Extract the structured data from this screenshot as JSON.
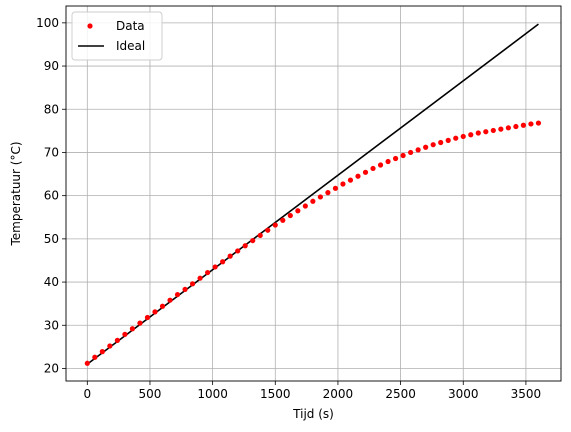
{
  "chart_data": {
    "type": "scatter",
    "title": "",
    "xlabel": "Tijd (s)",
    "ylabel": "Temperatuur (°C)",
    "xlim": [
      -170,
      3780
    ],
    "ylim": [
      17.1,
      103.9
    ],
    "xticks": [
      0,
      500,
      1000,
      1500,
      2000,
      2500,
      3000,
      3500
    ],
    "yticks": [
      20,
      30,
      40,
      50,
      60,
      70,
      80,
      90,
      100
    ],
    "grid": true,
    "legend": "top-left",
    "series": [
      {
        "name": "Data",
        "kind": "markers",
        "color": "#ff0000",
        "x": [
          0,
          60,
          120,
          180,
          240,
          300,
          360,
          420,
          480,
          540,
          600,
          660,
          720,
          780,
          840,
          900,
          960,
          1020,
          1080,
          1140,
          1200,
          1260,
          1320,
          1380,
          1440,
          1500,
          1560,
          1620,
          1680,
          1740,
          1800,
          1860,
          1920,
          1980,
          2040,
          2100,
          2160,
          2220,
          2280,
          2340,
          2400,
          2460,
          2520,
          2580,
          2640,
          2700,
          2760,
          2820,
          2880,
          2940,
          3000,
          3060,
          3120,
          3180,
          3240,
          3300,
          3360,
          3420,
          3480,
          3540,
          3600
        ],
        "y": [
          21.2,
          22.6,
          23.9,
          25.2,
          26.5,
          27.9,
          29.2,
          30.5,
          31.8,
          33.1,
          34.4,
          35.8,
          37.1,
          38.3,
          39.6,
          40.9,
          42.2,
          43.5,
          44.7,
          46.0,
          47.2,
          48.4,
          49.6,
          50.8,
          52.0,
          53.2,
          54.3,
          55.4,
          56.5,
          57.6,
          58.7,
          59.7,
          60.7,
          61.7,
          62.7,
          63.6,
          64.5,
          65.4,
          66.3,
          67.1,
          67.9,
          68.6,
          69.3,
          70.0,
          70.6,
          71.2,
          71.8,
          72.3,
          72.8,
          73.3,
          73.7,
          74.1,
          74.5,
          74.8,
          75.1,
          75.4,
          75.7,
          76.0,
          76.3,
          76.6,
          76.8
        ]
      },
      {
        "name": "Ideal",
        "kind": "line",
        "color": "#000000",
        "x": [
          0,
          3600
        ],
        "y": [
          21.0,
          99.7
        ]
      }
    ]
  }
}
